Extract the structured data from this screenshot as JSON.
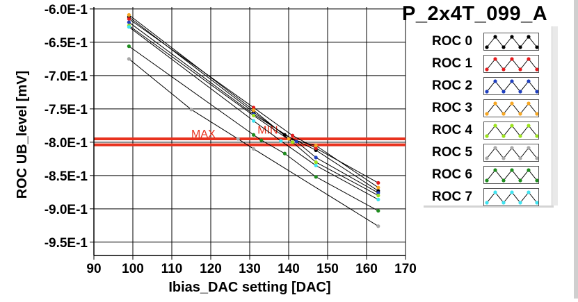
{
  "title": "P_2x4T_099_A",
  "legend": [
    {
      "label": "ROC 0",
      "color": "#000000"
    },
    {
      "label": "ROC 1",
      "color": "#e31a1c"
    },
    {
      "label": "ROC 2",
      "color": "#1f3fbf"
    },
    {
      "label": "ROC 3",
      "color": "#f5a623"
    },
    {
      "label": "ROC 4",
      "color": "#9be21c"
    },
    {
      "label": "ROC 5",
      "color": "#a8a8a8"
    },
    {
      "label": "ROC 6",
      "color": "#1e8c1e"
    },
    {
      "label": "ROC 7",
      "color": "#3fe3f0"
    }
  ],
  "chart_data": {
    "type": "scatter",
    "xlabel": "Ibias_DAC setting [DAC]",
    "ylabel": "ROC UB_level [mV]",
    "xlim": [
      90,
      170
    ],
    "ylim": [
      -0.97,
      -0.597
    ],
    "xticks": [
      "90",
      "100",
      "110",
      "120",
      "130",
      "140",
      "150",
      "160",
      "170"
    ],
    "yticks": [
      {
        "value": -0.6,
        "label": "-6.0E-1"
      },
      {
        "value": -0.65,
        "label": "-6.5E-1"
      },
      {
        "value": -0.7,
        "label": "-7.0E-1"
      },
      {
        "value": -0.75,
        "label": "-7.5E-1"
      },
      {
        "value": -0.8,
        "label": "-8.0E-1"
      },
      {
        "value": -0.85,
        "label": "-8.5E-1"
      },
      {
        "value": -0.9,
        "label": "-9.0E-1"
      },
      {
        "value": -0.95,
        "label": "-9.5E-1"
      }
    ],
    "grid": true,
    "hlines": [
      {
        "label": "MAX",
        "y": -0.795,
        "color": "#e8321e"
      },
      {
        "label": "MIN",
        "y": -0.804,
        "color": "#e8321e"
      }
    ],
    "series": [
      {
        "name": "ROC 0",
        "color": "#000000",
        "points": [
          [
            99,
            -0.612
          ],
          [
            131,
            -0.755
          ],
          [
            139,
            -0.789
          ],
          [
            147,
            -0.812
          ],
          [
            163,
            -0.873
          ]
        ]
      },
      {
        "name": "ROC 1",
        "color": "#e31a1c",
        "points": [
          [
            99,
            -0.615
          ],
          [
            131,
            -0.748
          ],
          [
            141,
            -0.79
          ],
          [
            147,
            -0.809
          ],
          [
            163,
            -0.861
          ]
        ]
      },
      {
        "name": "ROC 2",
        "color": "#1f3fbf",
        "points": [
          [
            99,
            -0.62
          ],
          [
            131,
            -0.758
          ],
          [
            142,
            -0.799
          ],
          [
            147,
            -0.823
          ],
          [
            163,
            -0.876
          ]
        ]
      },
      {
        "name": "ROC 3",
        "color": "#f5a623",
        "points": [
          [
            99,
            -0.609
          ],
          [
            131,
            -0.752
          ],
          [
            140,
            -0.795
          ],
          [
            147,
            -0.805
          ],
          [
            163,
            -0.868
          ]
        ]
      },
      {
        "name": "ROC 4",
        "color": "#9be21c",
        "points": [
          [
            99,
            -0.625
          ],
          [
            131,
            -0.76
          ],
          [
            141,
            -0.8
          ],
          [
            147,
            -0.83
          ],
          [
            163,
            -0.88
          ]
        ]
      },
      {
        "name": "ROC 5",
        "color": "#a8a8a8",
        "points": [
          [
            99,
            -0.675
          ],
          [
            115,
            -0.751
          ],
          [
            127,
            -0.795
          ],
          [
            131,
            -0.81
          ],
          [
            163,
            -0.926
          ]
        ]
      },
      {
        "name": "ROC 6",
        "color": "#1e8c1e",
        "points": [
          [
            99,
            -0.656
          ],
          [
            131,
            -0.789
          ],
          [
            133,
            -0.797
          ],
          [
            139,
            -0.817
          ],
          [
            147,
            -0.852
          ],
          [
            163,
            -0.903
          ]
        ]
      },
      {
        "name": "ROC 7",
        "color": "#3fe3f0",
        "points": [
          [
            99,
            -0.627
          ],
          [
            131,
            -0.768
          ],
          [
            138,
            -0.798
          ],
          [
            147,
            -0.835
          ],
          [
            163,
            -0.886
          ]
        ]
      }
    ]
  }
}
